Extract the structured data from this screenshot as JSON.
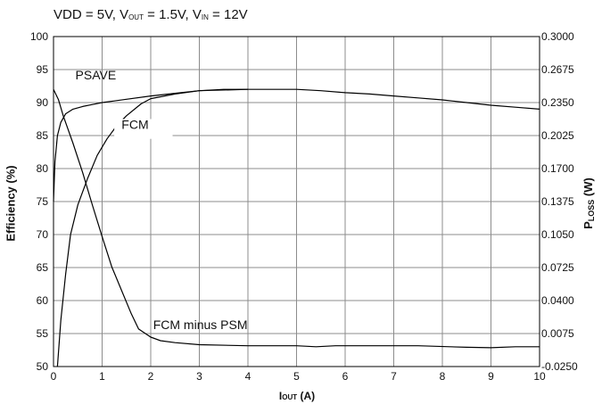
{
  "chart_data": {
    "type": "line",
    "title": {
      "prefix": "VDD = 5V, V",
      "vout_sub": "OUT",
      "mid": " = 1.5V, V",
      "vin_sub": "IN",
      "suffix": " = 12V"
    },
    "xlabel": {
      "main": "I",
      "sub": "OUT",
      "unit": " (A)"
    },
    "ylabel_left": "Efficiency (%)",
    "ylabel_right": {
      "main": "P",
      "sub": "LOSS",
      "unit": " (W)"
    },
    "xlim": [
      0,
      10
    ],
    "ylim_left": [
      50,
      100
    ],
    "ylim_right": [
      -0.025,
      0.3
    ],
    "x_ticks": [
      "0",
      "1",
      "2",
      "3",
      "4",
      "5",
      "6",
      "7",
      "8",
      "9",
      "10"
    ],
    "y_left_ticks": [
      "50",
      "55",
      "60",
      "65",
      "70",
      "75",
      "80",
      "85",
      "90",
      "95",
      "100"
    ],
    "y_right_ticks": [
      "-0.0250",
      "0.0075",
      "0.0400",
      "0.0725",
      "0.1050",
      "0.1375",
      "0.1700",
      "0.2025",
      "0.2350",
      "0.2675",
      "0.3000"
    ],
    "grid": true,
    "annotations": [
      {
        "text": "PSAVE",
        "series": "psave"
      },
      {
        "text": "FCM",
        "series": "fcm"
      },
      {
        "text": "FCM minus PSM",
        "series": "ploss"
      }
    ],
    "series": [
      {
        "id": "psave",
        "axis": "left",
        "x": [
          0.0,
          0.03,
          0.08,
          0.15,
          0.25,
          0.4,
          0.6,
          0.8,
          1.0,
          1.5,
          2.0,
          2.5,
          3.0,
          3.5,
          4.0,
          4.5,
          5.0,
          5.5,
          6.0,
          6.5,
          7.0,
          7.5,
          8.0,
          8.5,
          9.0,
          9.5,
          10.0
        ],
        "y": [
          75.0,
          81.0,
          85.0,
          87.0,
          88.3,
          89.0,
          89.4,
          89.7,
          90.0,
          90.5,
          91.0,
          91.4,
          91.8,
          92.0,
          92.0,
          92.0,
          92.0,
          91.8,
          91.5,
          91.3,
          91.0,
          90.7,
          90.4,
          90.0,
          89.6,
          89.3,
          89.0
        ]
      },
      {
        "id": "fcm",
        "axis": "left",
        "x": [
          0.08,
          0.15,
          0.25,
          0.35,
          0.5,
          0.7,
          0.9,
          1.1,
          1.3,
          1.5,
          1.8,
          2.0,
          2.5,
          3.0,
          4.0
        ],
        "y": [
          50.0,
          57.0,
          64.0,
          70.0,
          74.5,
          78.5,
          82.0,
          84.5,
          86.5,
          88.0,
          89.8,
          90.6,
          91.3,
          91.8,
          92.0
        ]
      },
      {
        "id": "ploss",
        "axis": "right",
        "x": [
          0.0,
          0.1,
          0.2,
          0.4,
          0.6,
          0.8,
          1.0,
          1.2,
          1.4,
          1.6,
          1.75,
          2.0,
          2.2,
          2.5,
          3.0,
          4.0,
          5.0,
          5.4,
          5.8,
          6.5,
          7.5,
          8.5,
          9.0,
          9.5,
          10.0
        ],
        "y": [
          0.248,
          0.238,
          0.222,
          0.195,
          0.166,
          0.134,
          0.103,
          0.073,
          0.05,
          0.027,
          0.012,
          0.004,
          0.0005,
          -0.0015,
          -0.0035,
          -0.0045,
          -0.0045,
          -0.0055,
          -0.0045,
          -0.0045,
          -0.0045,
          -0.006,
          -0.0065,
          -0.0055,
          -0.0055
        ]
      }
    ]
  }
}
